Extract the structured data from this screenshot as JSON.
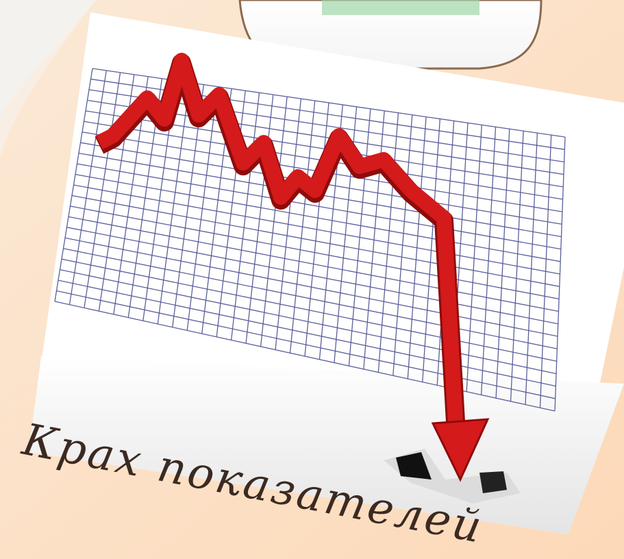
{
  "caption": "Крах показателей"
}
